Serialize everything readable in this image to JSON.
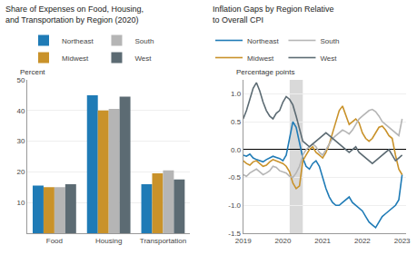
{
  "chart_data": [
    {
      "type": "bar",
      "title": "Share of Expenses on Food, Housing,\nand Transportation by Region (2020)",
      "ylabel": "Percent",
      "categories": [
        "Food",
        "Housing",
        "Transportation"
      ],
      "series": [
        {
          "name": "Northeast",
          "color": "#1f7bb6",
          "values": [
            15.5,
            45.0,
            16.0
          ]
        },
        {
          "name": "Midwest",
          "color": "#c9922a",
          "values": [
            15.0,
            40.0,
            19.5
          ]
        },
        {
          "name": "South",
          "color": "#b5b5b5",
          "values": [
            15.0,
            40.5,
            20.5
          ]
        },
        {
          "name": "West",
          "color": "#5c6b73",
          "values": [
            16.0,
            44.5,
            17.5
          ]
        }
      ],
      "ylim": [
        0,
        50
      ],
      "yticks": [
        10,
        20,
        30,
        40,
        50
      ],
      "grid": true,
      "legend": "top"
    },
    {
      "type": "line",
      "title": "Inflation Gaps by Region Relative\nto Overall CPI",
      "ylabel": "Percentage points",
      "x": [
        2019.0,
        2019.083,
        2019.167,
        2019.25,
        2019.333,
        2019.417,
        2019.5,
        2019.583,
        2019.667,
        2019.75,
        2019.833,
        2019.917,
        2020.0,
        2020.083,
        2020.167,
        2020.25,
        2020.333,
        2020.417,
        2020.5,
        2020.583,
        2020.667,
        2020.75,
        2020.833,
        2020.917,
        2021.0,
        2021.083,
        2021.167,
        2021.25,
        2021.333,
        2021.417,
        2021.5,
        2021.583,
        2021.667,
        2021.75,
        2021.833,
        2021.917,
        2022.0,
        2022.083,
        2022.167,
        2022.25,
        2022.333,
        2022.417,
        2022.5,
        2022.583,
        2022.667,
        2022.75,
        2022.833,
        2022.917,
        2023.0
      ],
      "series": [
        {
          "name": "Northeast",
          "color": "#1f7bb6",
          "values": [
            -0.1,
            -0.12,
            -0.08,
            -0.15,
            -0.18,
            -0.2,
            -0.22,
            -0.18,
            -0.15,
            -0.12,
            -0.14,
            -0.16,
            -0.2,
            -0.1,
            0.2,
            0.5,
            0.4,
            0.1,
            -0.15,
            -0.3,
            -0.35,
            -0.25,
            -0.2,
            -0.3,
            -0.5,
            -0.7,
            -0.85,
            -0.95,
            -1.0,
            -1.0,
            -0.95,
            -0.9,
            -0.85,
            -0.95,
            -1.0,
            -1.05,
            -1.1,
            -1.2,
            -1.3,
            -1.35,
            -1.4,
            -1.3,
            -1.2,
            -1.15,
            -1.1,
            -1.05,
            -1.0,
            -0.9,
            -0.45
          ]
        },
        {
          "name": "Midwest",
          "color": "#c9922a",
          "values": [
            -0.2,
            -0.25,
            -0.28,
            -0.22,
            -0.2,
            -0.25,
            -0.3,
            -0.28,
            -0.22,
            -0.18,
            -0.2,
            -0.22,
            -0.25,
            -0.3,
            -0.4,
            -0.6,
            -0.7,
            -0.65,
            -0.2,
            -0.1,
            0.0,
            0.05,
            -0.05,
            -0.1,
            -0.15,
            -0.05,
            0.1,
            0.3,
            0.5,
            0.7,
            0.78,
            0.6,
            0.45,
            0.5,
            0.55,
            0.48,
            0.3,
            0.2,
            0.15,
            0.2,
            0.3,
            0.4,
            0.42,
            0.35,
            0.25,
            0.2,
            -0.1,
            -0.35,
            -0.45
          ]
        },
        {
          "name": "South",
          "color": "#b5b5b5",
          "values": [
            -0.45,
            -0.48,
            -0.42,
            -0.38,
            -0.35,
            -0.4,
            -0.45,
            -0.42,
            -0.38,
            -0.3,
            -0.32,
            -0.38,
            -0.4,
            -0.42,
            -0.48,
            -0.5,
            -0.42,
            -0.3,
            -0.1,
            0.0,
            0.05,
            0.1,
            0.05,
            -0.05,
            -0.1,
            0.0,
            0.1,
            0.2,
            0.25,
            0.3,
            0.35,
            0.32,
            0.28,
            0.35,
            0.45,
            0.55,
            0.6,
            0.65,
            0.7,
            0.72,
            0.68,
            0.6,
            0.5,
            0.45,
            0.4,
            0.35,
            0.3,
            0.25,
            0.55
          ]
        },
        {
          "name": "West",
          "color": "#5c6b73",
          "values": [
            0.55,
            0.7,
            0.9,
            1.1,
            1.2,
            1.05,
            0.85,
            0.7,
            0.6,
            0.55,
            0.65,
            0.7,
            0.85,
            0.95,
            0.9,
            0.8,
            0.6,
            0.35,
            0.15,
            0.1,
            0.05,
            0.1,
            0.15,
            0.2,
            0.25,
            0.3,
            0.25,
            0.2,
            0.15,
            0.1,
            0.05,
            0.0,
            -0.05,
            0.0,
            0.05,
            -0.05,
            -0.1,
            -0.15,
            -0.2,
            -0.25,
            -0.2,
            -0.15,
            -0.1,
            -0.05,
            0.0,
            -0.1,
            -0.2,
            -0.15,
            -0.1
          ]
        }
      ],
      "shade": [
        2020.17,
        2020.5
      ],
      "xlim": [
        2019,
        2023.1
      ],
      "xticks": [
        2019,
        2020,
        2021,
        2022,
        2023
      ],
      "ylim": [
        -1.5,
        1.25
      ],
      "yticks": [
        -1.5,
        {
          "value": -1.0,
          "label": "-1.0"
        },
        -0.5,
        {
          "value": 0.0,
          "label": "0.0"
        },
        0.5,
        {
          "value": 1.0,
          "label": "1.0"
        }
      ],
      "grid": true,
      "legend": "top"
    }
  ]
}
